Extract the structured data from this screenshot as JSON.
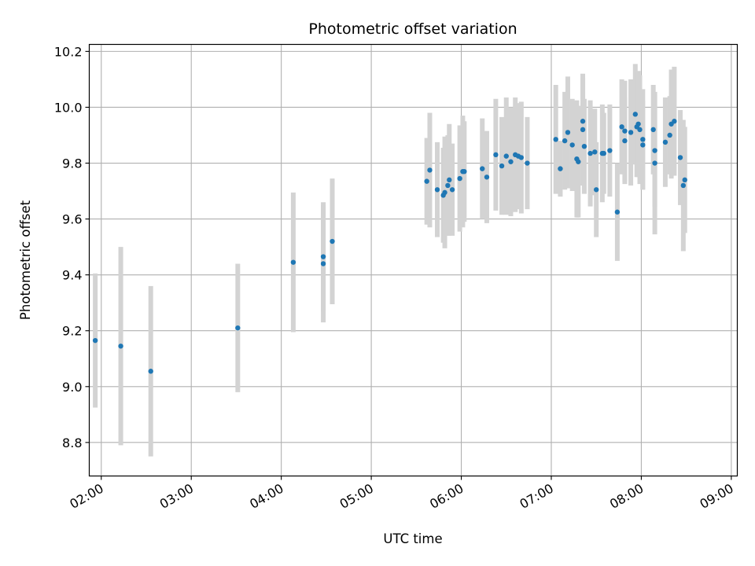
{
  "chart_data": {
    "type": "scatter",
    "title": "Photometric offset variation",
    "xlabel": "UTC time",
    "ylabel": "Photometric offset",
    "xlim": [
      "01:52",
      "09:04"
    ],
    "ylim": [
      8.68,
      10.225
    ],
    "grid": true,
    "x_ticks": [
      "02:00",
      "03:00",
      "04:00",
      "05:00",
      "06:00",
      "07:00",
      "08:00",
      "09:00"
    ],
    "y_ticks": [
      "8.8",
      "9.0",
      "9.2",
      "9.4",
      "9.6",
      "9.8",
      "10.0",
      "10.2"
    ],
    "colors": {
      "point": "#1f77b4",
      "errorbar": "#d3d3d3",
      "grid": "#b0b0b0"
    },
    "series": [
      {
        "x": [
          "01:56",
          "02:13",
          "02:33",
          "03:31",
          "04:08",
          "04:28",
          "04:28",
          "04:34",
          "05:37",
          "05:39",
          "05:44",
          "05:48",
          "05:49",
          "05:51",
          "05:52",
          "05:54",
          "05:59",
          "06:01",
          "06:02",
          "06:14",
          "06:17",
          "06:23",
          "06:27",
          "06:30",
          "06:33",
          "06:36",
          "06:38",
          "06:40",
          "06:44",
          "07:03",
          "07:06",
          "07:09",
          "07:11",
          "07:14",
          "07:17",
          "07:18",
          "07:21",
          "07:21",
          "07:22",
          "07:26",
          "07:29",
          "07:30",
          "07:34",
          "07:35",
          "07:39",
          "07:44",
          "07:47",
          "07:49",
          "07:49",
          "07:53",
          "07:56",
          "07:57",
          "07:58",
          "07:59",
          "08:01",
          "08:01",
          "08:08",
          "08:09",
          "08:09",
          "08:16",
          "08:19",
          "08:20",
          "08:22",
          "08:26",
          "08:28",
          "08:29"
        ],
        "y": [
          9.165,
          9.145,
          9.055,
          9.21,
          9.445,
          9.465,
          9.44,
          9.52,
          9.735,
          9.775,
          9.705,
          9.685,
          9.695,
          9.72,
          9.74,
          9.705,
          9.745,
          9.77,
          9.77,
          9.78,
          9.75,
          9.83,
          9.79,
          9.825,
          9.805,
          9.83,
          9.825,
          9.82,
          9.8,
          9.885,
          9.78,
          9.88,
          9.91,
          9.865,
          9.815,
          9.805,
          9.95,
          9.92,
          9.86,
          9.835,
          9.84,
          9.705,
          9.835,
          9.835,
          9.845,
          9.625,
          9.93,
          9.915,
          9.88,
          9.91,
          9.975,
          9.93,
          9.94,
          9.92,
          9.865,
          9.885,
          9.92,
          9.8,
          9.845,
          9.875,
          9.9,
          9.94,
          9.95,
          9.82,
          9.72,
          9.74
        ],
        "yerr": [
          0.24,
          0.355,
          0.305,
          0.23,
          0.25,
          0.195,
          0.21,
          0.225,
          0.155,
          0.205,
          0.17,
          0.17,
          0.2,
          0.18,
          0.2,
          0.165,
          0.19,
          0.2,
          0.18,
          0.18,
          0.165,
          0.2,
          0.175,
          0.21,
          0.195,
          0.205,
          0.19,
          0.2,
          0.165,
          0.195,
          0.1,
          0.175,
          0.2,
          0.165,
          0.21,
          0.2,
          0.155,
          0.2,
          0.17,
          0.19,
          0.155,
          0.17,
          0.175,
          0.145,
          0.165,
          0.175,
          0.17,
          0.18,
          0.155,
          0.19,
          0.18,
          0.18,
          0.19,
          0.195,
          0.16,
          0.18,
          0.16,
          0.255,
          0.2,
          0.16,
          0.14,
          0.195,
          0.195,
          0.17,
          0.235,
          0.19
        ]
      }
    ]
  }
}
